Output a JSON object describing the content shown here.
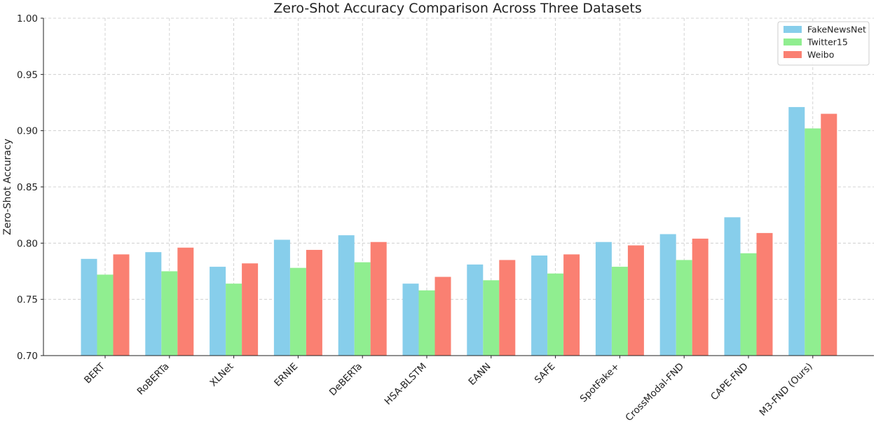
{
  "chart_data": {
    "type": "bar",
    "title": "Zero-Shot Accuracy Comparison Across Three Datasets",
    "xlabel": "",
    "ylabel": "Zero-Shot Accuracy",
    "ylim": [
      0.7,
      1.0
    ],
    "yticks": [
      "0.70",
      "0.75",
      "0.80",
      "0.85",
      "0.90",
      "0.95",
      "1.00"
    ],
    "grid": true,
    "legend_position": "top-right",
    "categories": [
      "BERT",
      "RoBERTa",
      "XLNet",
      "ERNIE",
      "DeBERTa",
      "HSA-BLSTM",
      "EANN",
      "SAFE",
      "SpotFake+",
      "CrossModal-FND",
      "CAPE-FND",
      "M3-FND (Ours)"
    ],
    "series": [
      {
        "name": "FakeNewsNet",
        "color": "#87CEEB",
        "values": [
          0.786,
          0.792,
          0.779,
          0.803,
          0.807,
          0.764,
          0.781,
          0.789,
          0.801,
          0.808,
          0.823,
          0.921
        ]
      },
      {
        "name": "Twitter15",
        "color": "#90EE90",
        "values": [
          0.772,
          0.775,
          0.764,
          0.778,
          0.783,
          0.758,
          0.767,
          0.773,
          0.779,
          0.785,
          0.791,
          0.902
        ]
      },
      {
        "name": "Weibo",
        "color": "#FA8072",
        "values": [
          0.79,
          0.796,
          0.782,
          0.794,
          0.801,
          0.77,
          0.785,
          0.79,
          0.798,
          0.804,
          0.809,
          0.915
        ]
      }
    ]
  }
}
